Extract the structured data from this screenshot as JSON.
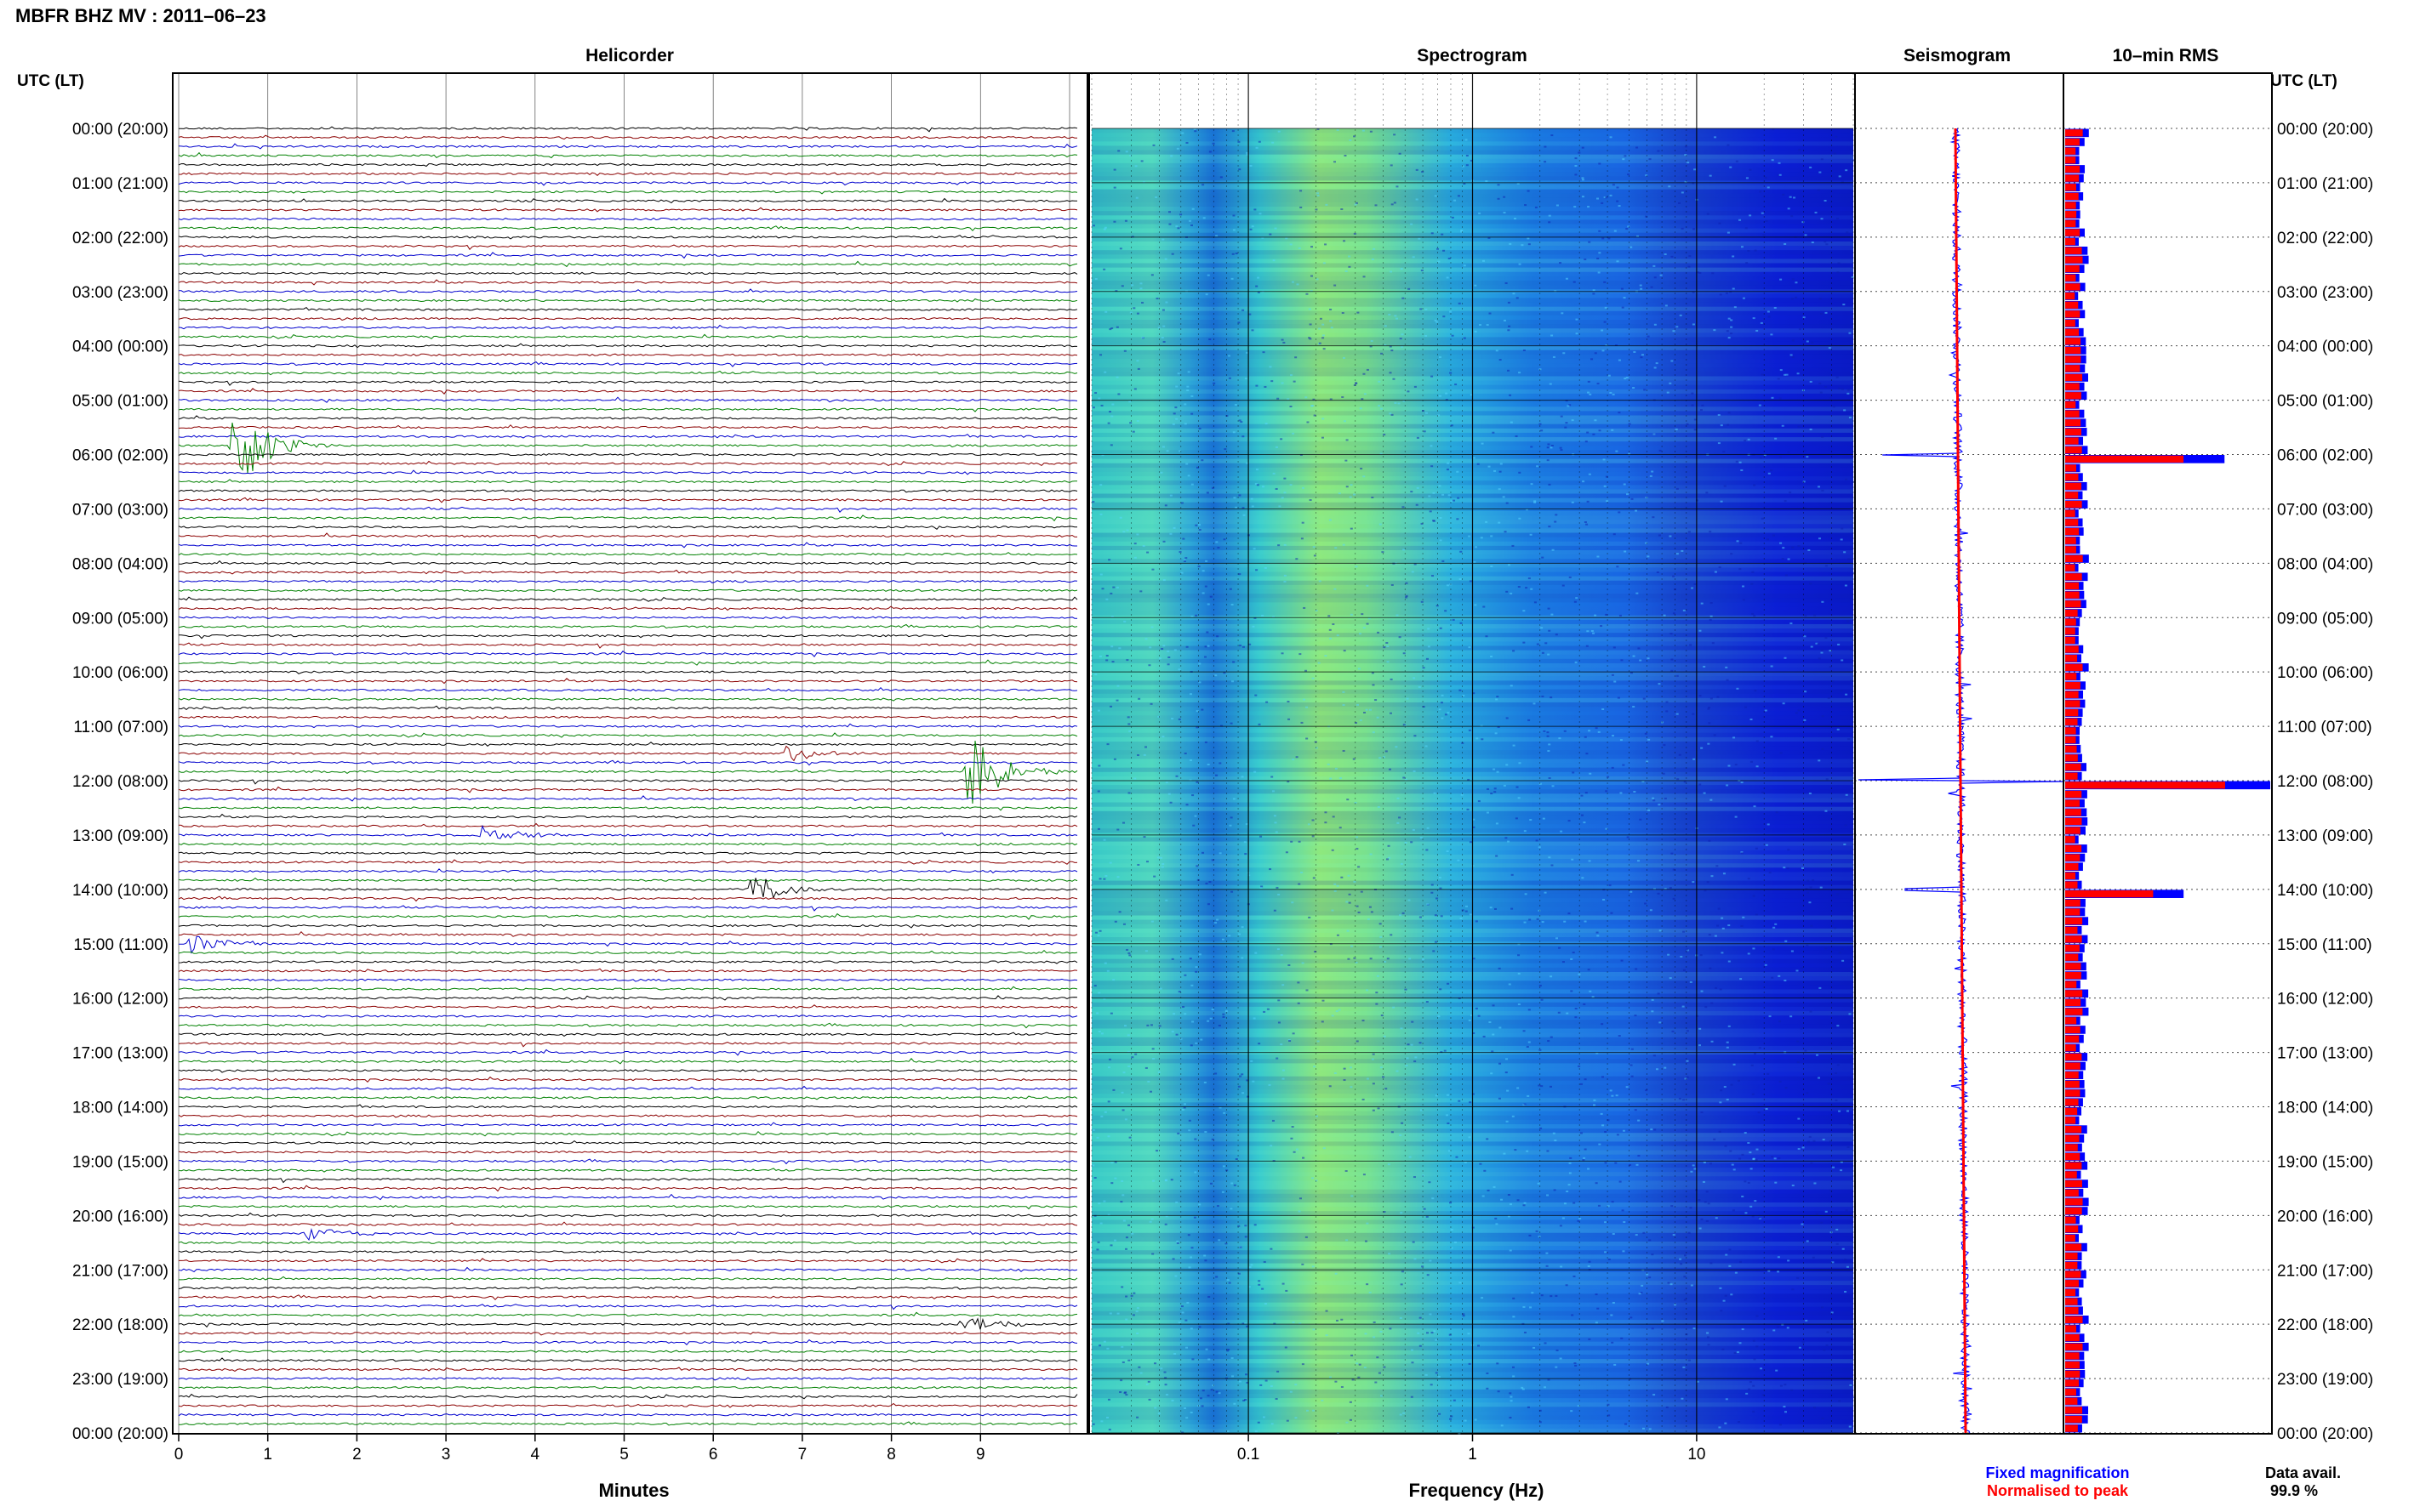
{
  "header": {
    "title": "MBFR BHZ MV : 2011–06–23"
  },
  "panels": {
    "helicorder": "Helicorder",
    "spectrogram": "Spectrogram",
    "seismogram": "Seismogram",
    "rms": "10–min RMS"
  },
  "time_axis_label": "UTC (LT)",
  "time_labels": [
    "00:00 (20:00)",
    "01:00 (21:00)",
    "02:00 (22:00)",
    "03:00 (23:00)",
    "04:00 (00:00)",
    "05:00 (01:00)",
    "06:00 (02:00)",
    "07:00 (03:00)",
    "08:00 (04:00)",
    "09:00 (05:00)",
    "10:00 (06:00)",
    "11:00 (07:00)",
    "12:00 (08:00)",
    "13:00 (09:00)",
    "14:00 (10:00)",
    "15:00 (11:00)",
    "16:00 (12:00)",
    "17:00 (13:00)",
    "18:00 (14:00)",
    "19:00 (15:00)",
    "20:00 (16:00)",
    "21:00 (17:00)",
    "22:00 (18:00)",
    "23:00 (19:00)",
    "00:00 (20:00)"
  ],
  "footer": {
    "minutes_label": "Minutes",
    "frequency_label": "Frequency (Hz)",
    "legend_fixed": "Fixed magnification",
    "legend_normalised": "Normalised to peak",
    "data_avail_label": "Data avail.",
    "data_avail_value": "99.9 %"
  },
  "colors": {
    "trace_cycle": [
      "#000000",
      "#8b0000",
      "#0000cd",
      "#008000"
    ],
    "fixed": "#0000ff",
    "normalised": "#ff0000"
  },
  "chart_data": {
    "type": "heatmap",
    "date": "2011-06-23",
    "station": "MBFR BHZ MV",
    "helicorder": {
      "x_ticks": [
        0,
        1,
        2,
        3,
        4,
        5,
        6,
        7,
        8,
        9
      ],
      "xlim": [
        0,
        10
      ],
      "lines_per_hour": 6,
      "hours": 24,
      "events": [
        {
          "hour": 5.0,
          "line": 5,
          "minute": 0.6,
          "amp": 7
        },
        {
          "hour": 11.0,
          "line": 5,
          "minute": 8.85,
          "amp": 6
        },
        {
          "hour": 14.0,
          "line": 0,
          "minute": 6.4,
          "amp": 2.5
        },
        {
          "hour": 15.0,
          "line": 0,
          "minute": 0.1,
          "amp": 1.5
        },
        {
          "hour": 13.0,
          "line": 0,
          "minute": 3.4,
          "amp": 1.2
        },
        {
          "hour": 11.0,
          "line": 3,
          "minute": 6.8,
          "amp": 1.2
        },
        {
          "hour": 20.0,
          "line": 2,
          "minute": 1.4,
          "amp": 1.2
        },
        {
          "hour": 22.0,
          "line": 0,
          "minute": 8.8,
          "amp": 1.0
        }
      ]
    },
    "spectrogram": {
      "x_scale": "log",
      "x_tick_labels": [
        "0.1",
        "1",
        "10"
      ],
      "xlim_hz": [
        0.02,
        50
      ],
      "peak_band_hz": [
        0.2,
        0.4
      ]
    },
    "rms": {
      "series": [
        {
          "name": "Fixed magnification",
          "color": "#0000ff"
        },
        {
          "name": "Normalised to peak",
          "color": "#ff0000"
        }
      ],
      "peaks": [
        {
          "time": "06:00",
          "relative": 0.74
        },
        {
          "time": "12:00",
          "relative": 1.0
        },
        {
          "time": "14:00",
          "relative": 0.55
        }
      ]
    }
  }
}
